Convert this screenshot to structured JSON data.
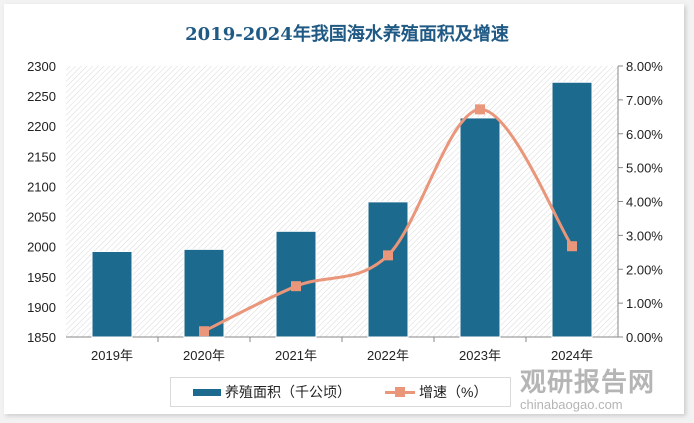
{
  "chart_data": {
    "type": "bar+line",
    "title": "2019-2024年我国海水养殖面积及增速",
    "categories": [
      "2019年",
      "2020年",
      "2021年",
      "2022年",
      "2023年",
      "2024年"
    ],
    "series": [
      {
        "name": "养殖面积（千公顷）",
        "type": "bar",
        "axis": "left",
        "color": "#1c6a8e",
        "values": [
          1992,
          1995.5,
          2025.5,
          2074.4,
          2213.8,
          2273
        ]
      },
      {
        "name": "增速（%）",
        "type": "line",
        "axis": "right",
        "color": "#e9967a",
        "values": [
          null,
          0.17,
          1.5,
          2.41,
          6.72,
          2.68
        ]
      }
    ],
    "ylim": [
      1850,
      2300
    ],
    "yticks": [
      "1850",
      "1900",
      "1950",
      "2000",
      "2050",
      "2100",
      "2150",
      "2200",
      "2250",
      "2300"
    ],
    "y2lim": [
      0,
      8
    ],
    "y2ticks": [
      "0.00%",
      "1.00%",
      "2.00%",
      "3.00%",
      "4.00%",
      "5.00%",
      "6.00%",
      "7.00%",
      "8.00%"
    ],
    "legend": "bottom",
    "grid": false
  },
  "watermark": {
    "cn": "观研报告网",
    "en": "chinabaogao.com"
  }
}
